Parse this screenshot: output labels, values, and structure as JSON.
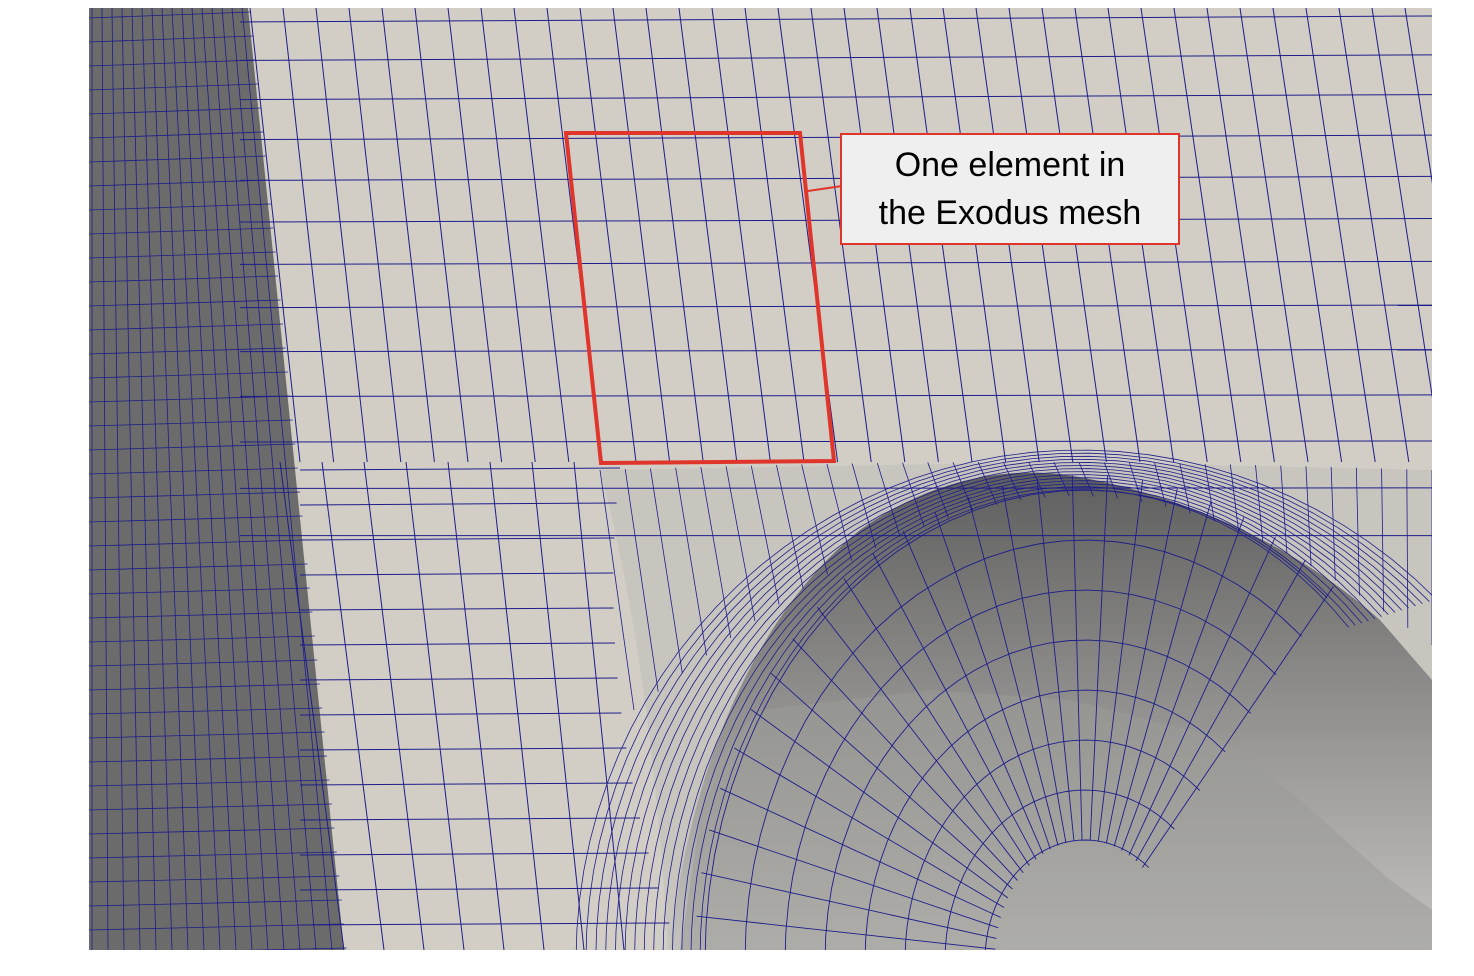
{
  "annotation": {
    "line1": "One element in",
    "line2": "the Exodus mesh"
  },
  "colors": {
    "background": "#ffffff",
    "surface_light": "#d2cec6",
    "surface_mid": "#aeaca9",
    "surface_dark": "#6b6b6b",
    "mesh_line": "#1d1d8a",
    "highlight_red": "#e0352a",
    "callout_fill": "#efefef"
  }
}
